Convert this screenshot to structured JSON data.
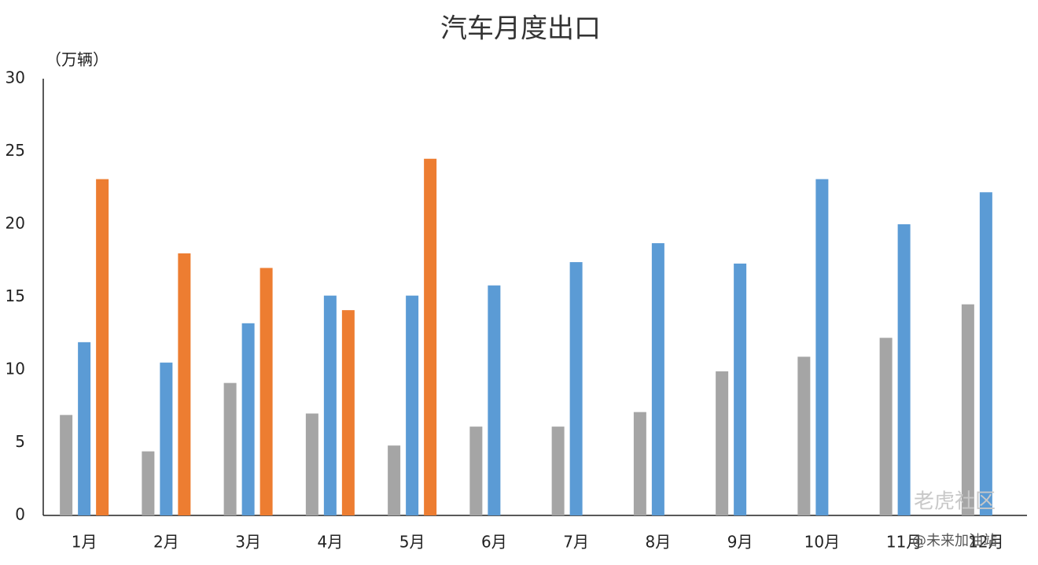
{
  "chart_data": {
    "type": "bar",
    "title": "汽车月度出口",
    "y_label": "（万辆）",
    "categories": [
      "1月",
      "2月",
      "3月",
      "4月",
      "5月",
      "6月",
      "7月",
      "8月",
      "9月",
      "10月",
      "11月",
      "12月"
    ],
    "series": [
      {
        "color": "#a5a5a5",
        "values": [
          6.9,
          4.4,
          9.1,
          7.0,
          4.8,
          6.1,
          6.1,
          7.1,
          9.9,
          10.9,
          12.2,
          14.5
        ]
      },
      {
        "color": "#5b9bd5",
        "values": [
          11.9,
          10.5,
          13.2,
          15.1,
          15.1,
          15.8,
          17.4,
          18.7,
          17.3,
          23.1,
          20.0,
          22.2
        ]
      },
      {
        "color": "#ed7d31",
        "values": [
          23.1,
          18.0,
          17.0,
          14.1,
          24.5,
          null,
          null,
          null,
          null,
          null,
          null,
          null
        ]
      }
    ],
    "ylim": [
      0,
      30
    ],
    "yticks": [
      0,
      5,
      10,
      15,
      20,
      25,
      30
    ],
    "grid": false,
    "watermarks": [
      "老虎社区",
      "@未来加油站"
    ]
  }
}
